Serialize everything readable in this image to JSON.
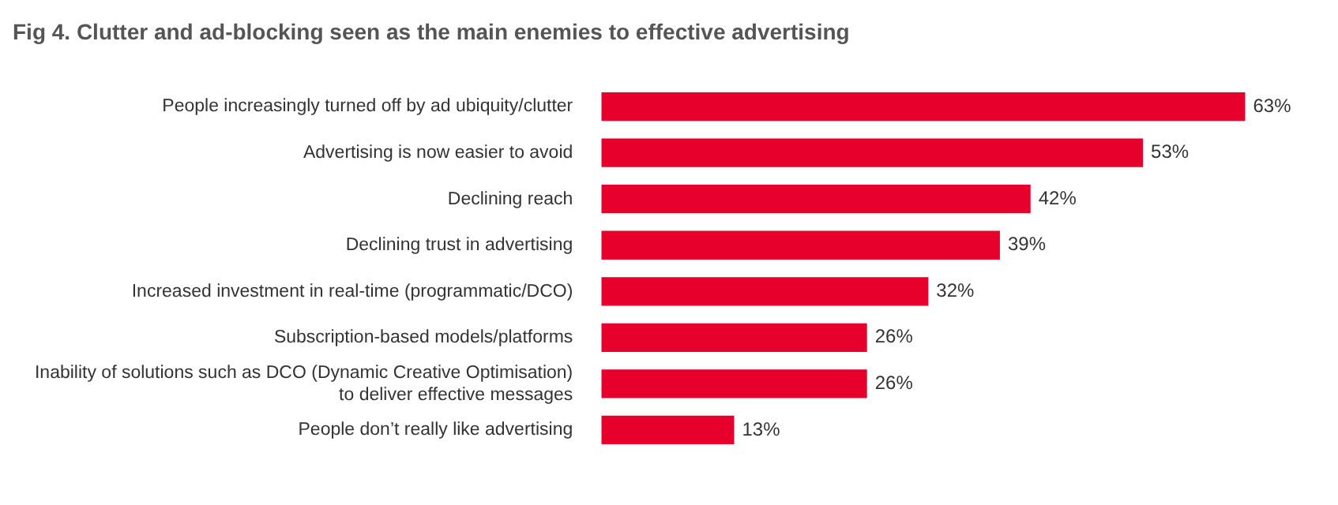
{
  "chart_data": {
    "type": "bar",
    "orientation": "horizontal",
    "title": "Fig 4.  Clutter and ad-blocking seen as the main enemies to effective advertising",
    "categories": [
      "People increasingly turned off by ad ubiquity/clutter",
      "Advertising is now easier to avoid",
      "Declining reach",
      "Declining trust in advertising",
      "Increased investment in real-time (programmatic/DCO)",
      "Subscription-based models/platforms",
      "Inability of solutions such as DCO (Dynamic Creative Optimisation) to deliver effective messages",
      "People don’t really like advertising"
    ],
    "values": [
      63,
      53,
      42,
      39,
      32,
      26,
      26,
      13
    ],
    "value_labels": [
      "63%",
      "53%",
      "42%",
      "39%",
      "32%",
      "26%",
      "26%",
      "13%"
    ],
    "color": "#e8002d"
  }
}
